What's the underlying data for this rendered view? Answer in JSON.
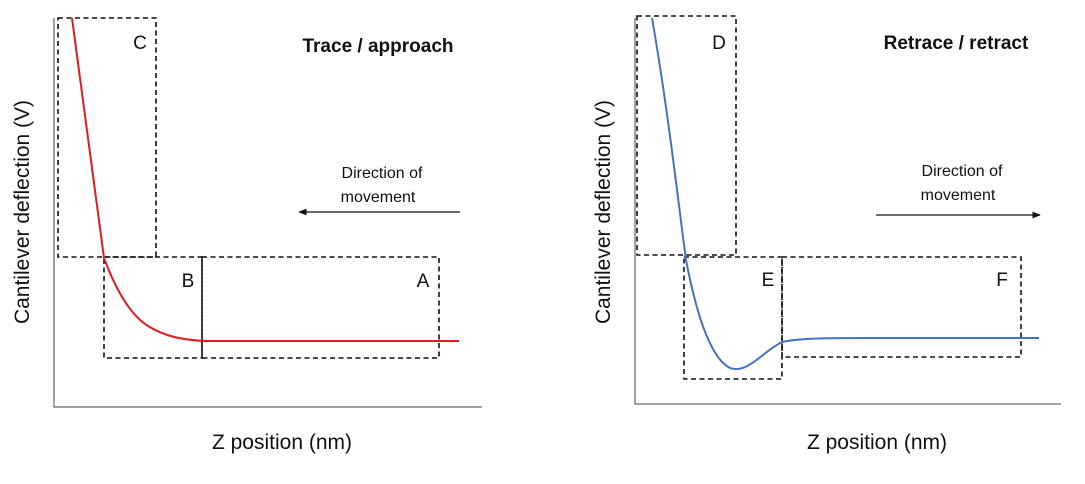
{
  "panels": [
    {
      "title": "Trace / approach",
      "y_axis_label": "Cantilever deflection (V)",
      "x_axis_label": "Z position (nm)",
      "direction_label_line1": "Direction of",
      "direction_label_line2": "movement",
      "arrow_direction": "left",
      "curve_color": "#e31a1c",
      "regions": [
        "C",
        "B",
        "A"
      ]
    },
    {
      "title": "Retrace / retract",
      "y_axis_label": "Cantilever deflection (V)",
      "x_axis_label": "Z position (nm)",
      "direction_label_line1": "Direction of",
      "direction_label_line2": "movement",
      "arrow_direction": "right",
      "curve_color": "#4472c4",
      "regions": [
        "D",
        "E",
        "F"
      ]
    }
  ]
}
